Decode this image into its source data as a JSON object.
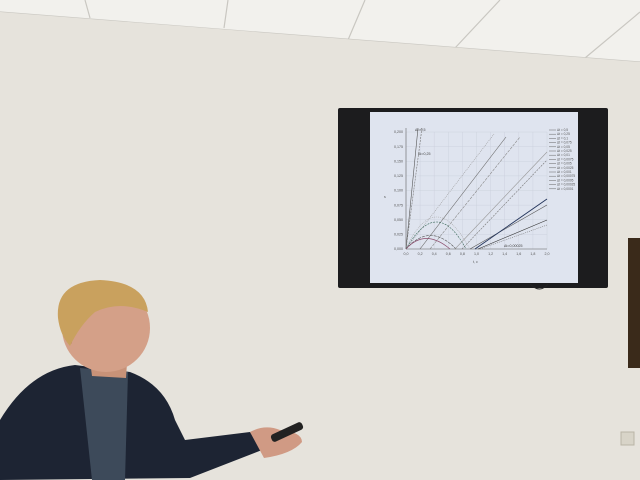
{
  "scene": {
    "description_colors": {
      "wall": "#e9e6df",
      "ceiling": "#f1f0ec",
      "tv_bezel": "#1c1c1e",
      "screen": "#dfe4ef",
      "jacket": "#1d2433",
      "hair": "#c9a15e"
    }
  },
  "chart": {
    "y_ticks": [
      "0,200",
      "0,175",
      "0,150",
      "0,125",
      "0,100",
      "0,075",
      "0,050",
      "0,025",
      "0,000"
    ],
    "x_ticks": [
      "0,0",
      "0,2",
      "0,4",
      "0,6",
      "0,8",
      "1,0",
      "1,2",
      "1,4",
      "1,6",
      "1,8",
      "2,0"
    ],
    "y_label": "s",
    "x_label": "t, c",
    "annotations": [
      "Δt=0,5",
      "Δt=0,25",
      "Δt=0,00025"
    ],
    "legend": [
      "Δt = 0,5",
      "Δt = 0,25",
      "Δt = 0,1",
      "Δt = 0,075",
      "Δt = 0,05",
      "Δt = 0,025",
      "Δt = 0,01",
      "Δt = 0,0075",
      "Δt = 0,005",
      "Δt = 0,0025",
      "Δt = 0,001",
      "Δt = 0,00075",
      "Δt = 0,0005",
      "Δt = 0,00025",
      "Δt = 0,0001"
    ]
  }
}
